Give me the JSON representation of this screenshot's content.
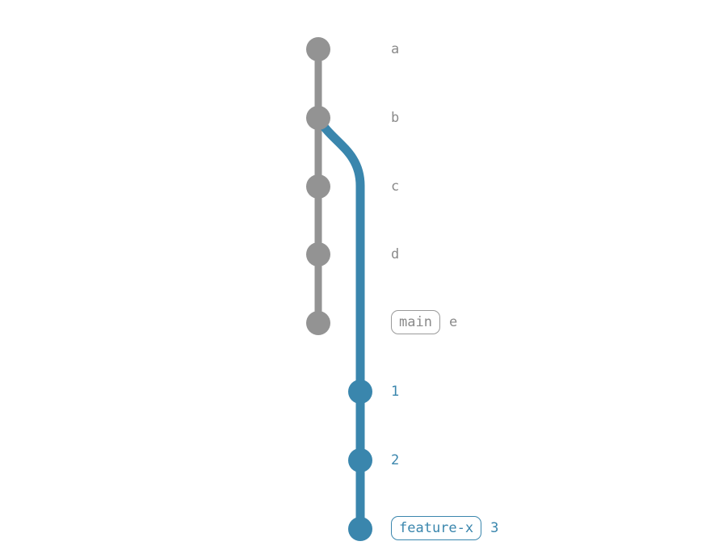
{
  "colors": {
    "main_branch": "#939393",
    "feature_branch": "#3a86ad"
  },
  "commits": {
    "a": "a",
    "b": "b",
    "c": "c",
    "d": "d",
    "e": "e",
    "f1": "1",
    "f2": "2",
    "f3": "3"
  },
  "refs": {
    "main": "main",
    "feature": "feature-x"
  }
}
